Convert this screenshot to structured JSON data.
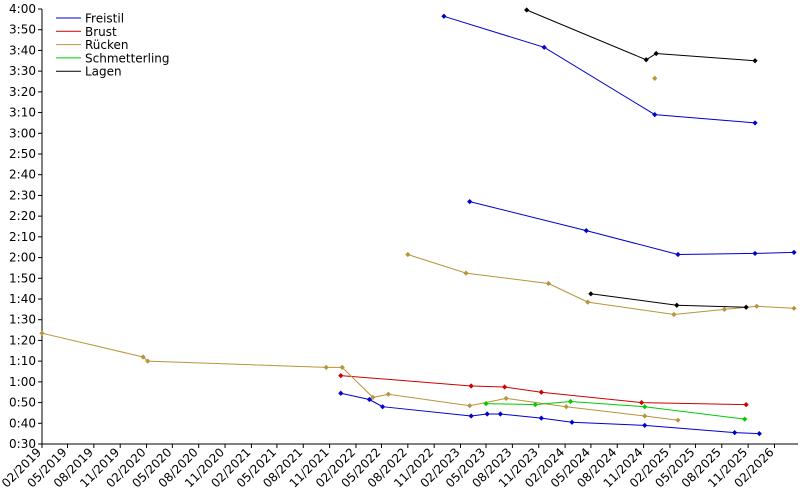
{
  "chart_data": {
    "type": "line",
    "title": "",
    "xlabel": "",
    "ylabel": "",
    "y_unit": "seconds",
    "ylim": [
      30,
      240
    ],
    "yticks": [
      {
        "v": 30,
        "label": "0:30"
      },
      {
        "v": 40,
        "label": "0:40"
      },
      {
        "v": 50,
        "label": "0:50"
      },
      {
        "v": 60,
        "label": "1:00"
      },
      {
        "v": 70,
        "label": "1:10"
      },
      {
        "v": 80,
        "label": "1:20"
      },
      {
        "v": 90,
        "label": "1:30"
      },
      {
        "v": 100,
        "label": "1:40"
      },
      {
        "v": 110,
        "label": "1:50"
      },
      {
        "v": 120,
        "label": "2:00"
      },
      {
        "v": 130,
        "label": "2:10"
      },
      {
        "v": 140,
        "label": "2:20"
      },
      {
        "v": 150,
        "label": "2:30"
      },
      {
        "v": 160,
        "label": "2:40"
      },
      {
        "v": 170,
        "label": "2:50"
      },
      {
        "v": 180,
        "label": "3:00"
      },
      {
        "v": 190,
        "label": "3:10"
      },
      {
        "v": 200,
        "label": "3:20"
      },
      {
        "v": 210,
        "label": "3:30"
      },
      {
        "v": 220,
        "label": "3:40"
      },
      {
        "v": 230,
        "label": "3:50"
      },
      {
        "v": 240,
        "label": "4:00"
      }
    ],
    "xlim": [
      "2019-02-01",
      "2026-05-01"
    ],
    "xticks": [
      {
        "date": "2019-02-01",
        "label": "02/2019"
      },
      {
        "date": "2019-05-01",
        "label": "05/2019"
      },
      {
        "date": "2019-08-01",
        "label": "08/2019"
      },
      {
        "date": "2019-11-01",
        "label": "11/2019"
      },
      {
        "date": "2020-02-01",
        "label": "02/2020"
      },
      {
        "date": "2020-05-01",
        "label": "05/2020"
      },
      {
        "date": "2020-08-01",
        "label": "08/2020"
      },
      {
        "date": "2020-11-01",
        "label": "11/2020"
      },
      {
        "date": "2021-02-01",
        "label": "02/2021"
      },
      {
        "date": "2021-05-01",
        "label": "05/2021"
      },
      {
        "date": "2021-08-01",
        "label": "08/2021"
      },
      {
        "date": "2021-11-01",
        "label": "11/2021"
      },
      {
        "date": "2022-02-01",
        "label": "02/2022"
      },
      {
        "date": "2022-05-01",
        "label": "05/2022"
      },
      {
        "date": "2022-08-01",
        "label": "08/2022"
      },
      {
        "date": "2022-11-01",
        "label": "11/2022"
      },
      {
        "date": "2023-02-01",
        "label": "02/2023"
      },
      {
        "date": "2023-05-01",
        "label": "05/2023"
      },
      {
        "date": "2023-08-01",
        "label": "08/2023"
      },
      {
        "date": "2023-11-01",
        "label": "11/2023"
      },
      {
        "date": "2024-02-01",
        "label": "02/2024"
      },
      {
        "date": "2024-05-01",
        "label": "05/2024"
      },
      {
        "date": "2024-08-01",
        "label": "08/2024"
      },
      {
        "date": "2024-11-01",
        "label": "11/2024"
      },
      {
        "date": "2025-02-01",
        "label": "02/2025"
      },
      {
        "date": "2025-05-01",
        "label": "05/2025"
      },
      {
        "date": "2025-08-01",
        "label": "08/2025"
      },
      {
        "date": "2025-11-01",
        "label": "11/2025"
      },
      {
        "date": "2026-02-01",
        "label": "02/2026"
      }
    ],
    "grid": false,
    "legend_position": "top-left",
    "series": [
      {
        "name": "Freistil",
        "color": "#0000cc",
        "segments": [
          [
            [
              "2021-12-10",
              54.5
            ],
            [
              "2022-03-20",
              51.5
            ],
            [
              "2022-05-05",
              48.0
            ],
            [
              "2023-03-10",
              43.5
            ],
            [
              "2023-05-05",
              44.5
            ],
            [
              "2023-06-20",
              44.5
            ],
            [
              "2023-11-10",
              42.5
            ],
            [
              "2024-02-25",
              40.5
            ],
            [
              "2024-11-05",
              39.0
            ],
            [
              "2025-09-15",
              35.5
            ],
            [
              "2025-12-10",
              35.0
            ]
          ],
          [
            [
              "2023-03-05",
              147.0
            ],
            [
              "2024-04-15",
              133.0
            ],
            [
              "2025-03-01",
              121.5
            ],
            [
              "2025-11-25",
              122.0
            ],
            [
              "2026-04-10",
              122.5
            ]
          ],
          [
            [
              "2022-12-05",
              236.5
            ],
            [
              "2023-11-20",
              221.5
            ],
            [
              "2024-12-10",
              189.0
            ],
            [
              "2025-11-25",
              185.0
            ]
          ]
        ]
      },
      {
        "name": "Brust",
        "color": "#cc0000",
        "segments": [
          [
            [
              "2021-12-10",
              63.0
            ],
            [
              "2023-03-10",
              58.0
            ],
            [
              "2023-07-05",
              57.5
            ],
            [
              "2023-11-10",
              55.0
            ],
            [
              "2024-10-25",
              50.0
            ],
            [
              "2025-10-25",
              49.0
            ]
          ]
        ]
      },
      {
        "name": "Rücken",
        "color": "#b8943a",
        "segments": [
          [
            [
              "2019-02-01",
              83.5
            ],
            [
              "2020-01-20",
              72.0
            ],
            [
              "2020-02-05",
              70.0
            ],
            [
              "2021-10-20",
              67.0
            ],
            [
              "2021-12-15",
              67.0
            ],
            [
              "2022-04-01",
              52.5
            ],
            [
              "2022-05-25",
              54.0
            ],
            [
              "2023-03-05",
              48.5
            ],
            [
              "2023-07-10",
              52.0
            ],
            [
              "2024-02-05",
              48.0
            ],
            [
              "2024-11-05",
              43.5
            ],
            [
              "2025-03-01",
              41.5
            ]
          ],
          [
            [
              "2022-08-01",
              121.5
            ],
            [
              "2023-02-20",
              112.5
            ],
            [
              "2023-12-05",
              107.5
            ],
            [
              "2024-04-20",
              98.5
            ],
            [
              "2025-02-15",
              92.5
            ],
            [
              "2025-08-10",
              95.0
            ],
            [
              "2025-12-01",
              96.5
            ],
            [
              "2026-04-10",
              95.5
            ]
          ],
          [
            [
              "2024-12-10",
              206.5
            ]
          ]
        ]
      },
      {
        "name": "Schmetterling",
        "color": "#00cc00",
        "segments": [
          [
            [
              "2023-05-01",
              49.5
            ],
            [
              "2023-10-20",
              49.0
            ],
            [
              "2024-02-20",
              50.5
            ],
            [
              "2024-11-05",
              48.0
            ],
            [
              "2025-10-20",
              42.0
            ]
          ]
        ]
      },
      {
        "name": "Lagen",
        "color": "#000000",
        "segments": [
          [
            [
              "2024-05-01",
              102.5
            ],
            [
              "2025-02-25",
              97.0
            ],
            [
              "2025-10-25",
              96.0
            ]
          ],
          [
            [
              "2023-09-20",
              239.5
            ],
            [
              "2024-11-10",
              215.5
            ],
            [
              "2024-12-15",
              218.5
            ],
            [
              "2025-11-25",
              215.0
            ]
          ]
        ]
      }
    ]
  }
}
